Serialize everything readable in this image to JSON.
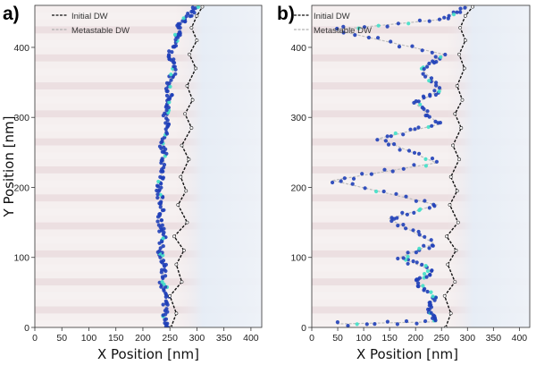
{
  "figure": {
    "y_axis_label": "Y Position [nm]",
    "colors": {
      "stripe_light": "#f6f1f1",
      "stripe_dark": "#e8dadc",
      "domain_right": "#eaf0f7",
      "initial_dw": "#111111",
      "metastable_dw": "#bdbdbd",
      "marker_core": "#1f3fb8",
      "marker_hot": "#40e0c8"
    }
  },
  "chart_data": [
    {
      "type": "scatter",
      "panel_label": "a)",
      "xlabel": "X Position [nm]",
      "ylabel": "Y Position [nm]",
      "xlim": [
        0,
        420
      ],
      "ylim": [
        0,
        460
      ],
      "xticks": [
        0,
        50,
        100,
        150,
        200,
        250,
        300,
        350,
        400
      ],
      "yticks": [
        0,
        100,
        200,
        300,
        400
      ],
      "legend": [
        "Initial DW",
        "Metastable DW"
      ],
      "legend_position": "top-left",
      "series": [
        {
          "name": "Initial DW",
          "points": [
            [
              252,
              0
            ],
            [
              262,
              20
            ],
            [
              250,
              45
            ],
            [
              272,
              65
            ],
            [
              262,
              90
            ],
            [
              276,
              110
            ],
            [
              258,
              130
            ],
            [
              282,
              150
            ],
            [
              265,
              175
            ],
            [
              280,
              195
            ],
            [
              270,
              215
            ],
            [
              285,
              240
            ],
            [
              272,
              260
            ],
            [
              290,
              285
            ],
            [
              278,
              305
            ],
            [
              292,
              325
            ],
            [
              282,
              345
            ],
            [
              298,
              370
            ],
            [
              286,
              390
            ],
            [
              300,
              410
            ],
            [
              290,
              428
            ],
            [
              300,
              445
            ],
            [
              310,
              458
            ]
          ]
        },
        {
          "name": "Metastable DW",
          "points": [
            [
              246,
              0
            ],
            [
              240,
              20
            ],
            [
              244,
              45
            ],
            [
              236,
              65
            ],
            [
              240,
              90
            ],
            [
              232,
              110
            ],
            [
              238,
              130
            ],
            [
              230,
              150
            ],
            [
              236,
              175
            ],
            [
              228,
              195
            ],
            [
              234,
              215
            ],
            [
              240,
              240
            ],
            [
              236,
              260
            ],
            [
              246,
              285
            ],
            [
              242,
              305
            ],
            [
              252,
              325
            ],
            [
              246,
              345
            ],
            [
              258,
              370
            ],
            [
              250,
              390
            ],
            [
              262,
              410
            ],
            [
              266,
              428
            ],
            [
              282,
              445
            ],
            [
              300,
              458
            ]
          ]
        }
      ]
    },
    {
      "type": "scatter",
      "panel_label": "b)",
      "xlabel": "X Position [nm]",
      "ylabel": "",
      "xlim": [
        0,
        420
      ],
      "ylim": [
        0,
        460
      ],
      "xticks": [
        0,
        50,
        100,
        150,
        200,
        250,
        300,
        350,
        400
      ],
      "yticks": [
        0,
        100,
        200,
        300,
        400
      ],
      "legend": [
        "Initial DW",
        "Metastable DW"
      ],
      "legend_position": "top-left",
      "series": [
        {
          "name": "Initial DW",
          "points": [
            [
              258,
              0
            ],
            [
              268,
              20
            ],
            [
              256,
              45
            ],
            [
              276,
              65
            ],
            [
              262,
              90
            ],
            [
              278,
              110
            ],
            [
              260,
              130
            ],
            [
              282,
              150
            ],
            [
              266,
              175
            ],
            [
              280,
              195
            ],
            [
              268,
              215
            ],
            [
              284,
              240
            ],
            [
              272,
              260
            ],
            [
              288,
              285
            ],
            [
              276,
              305
            ],
            [
              290,
              325
            ],
            [
              280,
              345
            ],
            [
              294,
              370
            ],
            [
              284,
              390
            ],
            [
              296,
              410
            ],
            [
              286,
              428
            ],
            [
              296,
              445
            ],
            [
              310,
              458
            ]
          ]
        },
        {
          "name": "Metastable DW",
          "points": [
            [
              48,
              5
            ],
            [
              240,
              8
            ],
            [
              226,
              25
            ],
            [
              235,
              45
            ],
            [
              200,
              65
            ],
            [
              235,
              80
            ],
            [
              170,
              100
            ],
            [
              236,
              120
            ],
            [
              150,
              155
            ],
            [
              240,
              175
            ],
            [
              40,
              210
            ],
            [
              240,
              235
            ],
            [
              130,
              270
            ],
            [
              245,
              290
            ],
            [
              200,
              320
            ],
            [
              250,
              340
            ],
            [
              210,
              370
            ],
            [
              255,
              390
            ],
            [
              45,
              425
            ],
            [
              250,
              440
            ],
            [
              300,
              458
            ]
          ]
        }
      ]
    }
  ]
}
